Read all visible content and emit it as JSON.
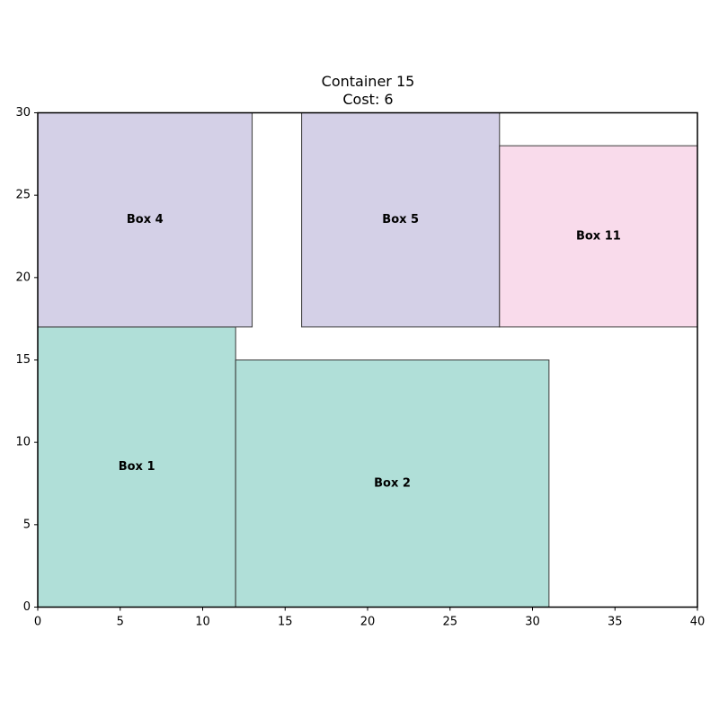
{
  "chart_data": {
    "type": "rectangles",
    "title": "Container 15",
    "subtitle": "Cost: 6",
    "xlim": [
      0,
      40
    ],
    "ylim": [
      0,
      30
    ],
    "x_ticks": [
      0,
      5,
      10,
      15,
      20,
      25,
      30,
      35,
      40
    ],
    "y_ticks": [
      0,
      5,
      10,
      15,
      20,
      25,
      30
    ],
    "grid": false,
    "boxes": [
      {
        "label": "Box 1",
        "x": 0,
        "y": 0,
        "width": 12,
        "height": 17,
        "color": "#b0dfd8"
      },
      {
        "label": "Box 2",
        "x": 12,
        "y": 0,
        "width": 19,
        "height": 15,
        "color": "#b0dfd8"
      },
      {
        "label": "Box 4",
        "x": 0,
        "y": 17,
        "width": 13,
        "height": 13,
        "color": "#d4d0e7"
      },
      {
        "label": "Box 5",
        "x": 16,
        "y": 17,
        "width": 12,
        "height": 13,
        "color": "#d4d0e7"
      },
      {
        "label": "Box 11",
        "x": 28,
        "y": 17,
        "width": 12,
        "height": 11,
        "color": "#f9dbeb"
      }
    ]
  }
}
